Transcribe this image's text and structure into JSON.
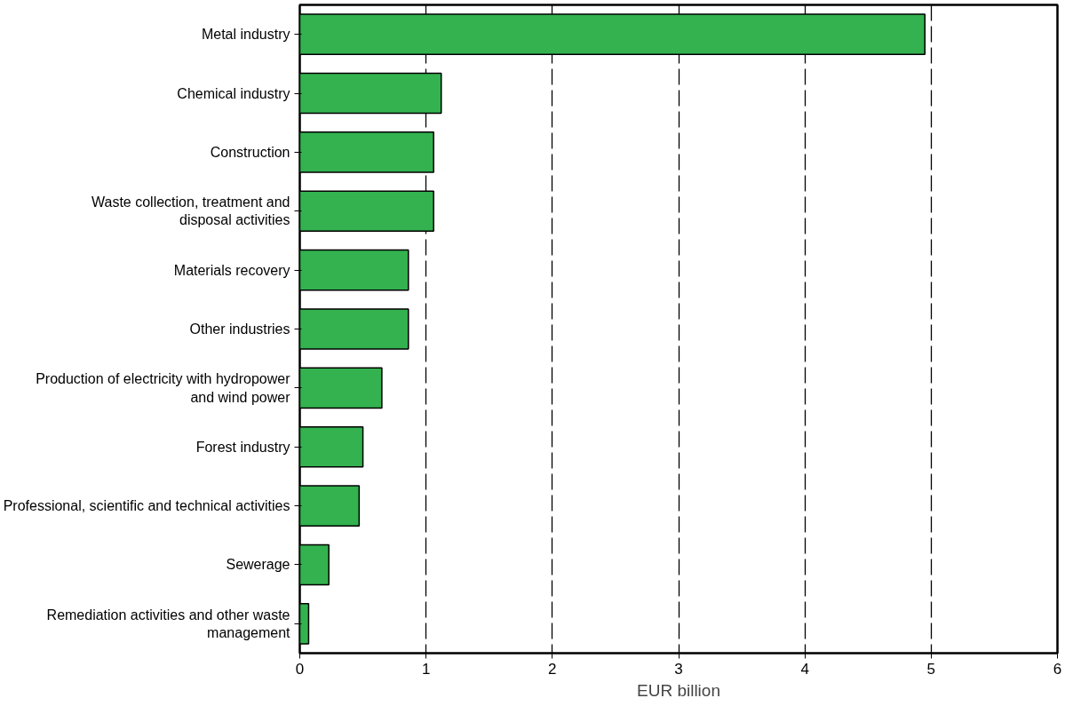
{
  "chart_data": {
    "type": "bar",
    "orientation": "horizontal",
    "xlabel": "EUR billion",
    "categories": [
      "Metal industry",
      "Chemical industry",
      "Construction",
      "Waste collection, treatment and\ndisposal activities",
      "Materials recovery",
      "Other industries",
      "Production of electricity with hydropower\nand wind power",
      "Forest industry",
      "Professional, scientific and technical activities",
      "Sewerage",
      "Remediation activities and other waste\nmanagement"
    ],
    "values": [
      4.95,
      1.12,
      1.06,
      1.06,
      0.86,
      0.86,
      0.65,
      0.5,
      0.47,
      0.23,
      0.07
    ],
    "color": "#33b24f",
    "xlim": [
      0,
      6
    ],
    "xticks": [
      0,
      1,
      2,
      3,
      4,
      5,
      6
    ],
    "grid": "x",
    "line_style": "dashed"
  }
}
